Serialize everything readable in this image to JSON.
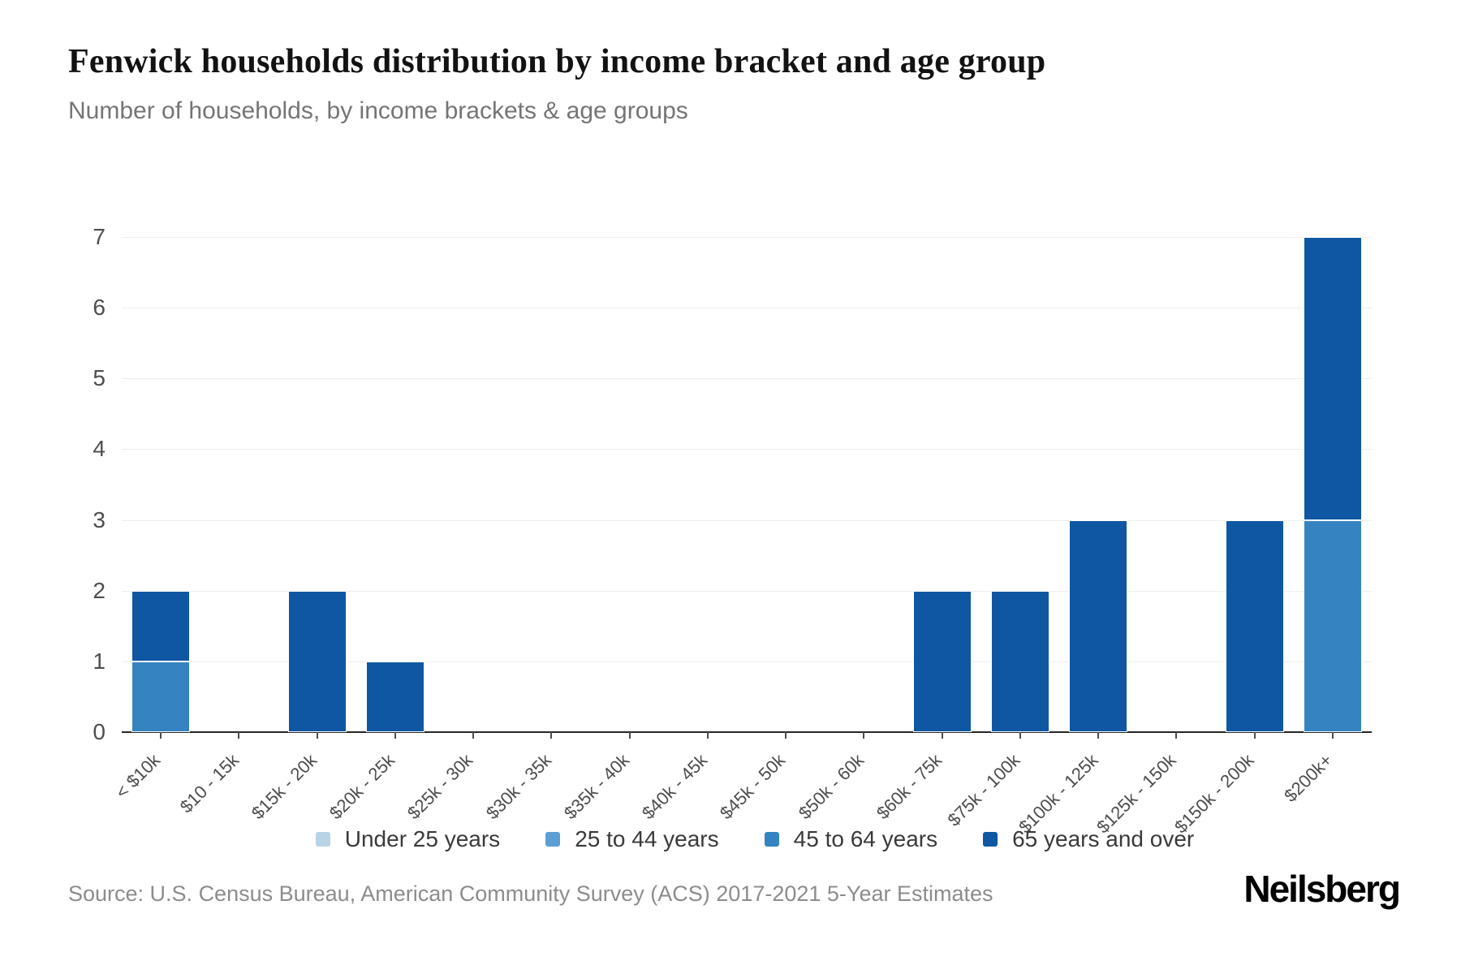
{
  "chart_data": {
    "type": "bar",
    "stacked": true,
    "title": "Fenwick households distribution by income bracket and age group",
    "subtitle": "Number of households, by income brackets & age groups",
    "xlabel": "",
    "ylabel": "",
    "ylim": [
      0,
      7
    ],
    "yticks": [
      0,
      1,
      2,
      3,
      4,
      5,
      6,
      7
    ],
    "grid": true,
    "legend_position": "bottom",
    "categories": [
      "< $10k",
      "$10 - 15k",
      "$15k - 20k",
      "$20k - 25k",
      "$25k - 30k",
      "$30k - 35k",
      "$35k - 40k",
      "$40k - 45k",
      "$45k - 50k",
      "$50k - 60k",
      "$60k - 75k",
      "$75k - 100k",
      "$100k - 125k",
      "$125k - 150k",
      "$150k - 200k",
      "$200k+"
    ],
    "series": [
      {
        "name": "Under 25 years",
        "color": "#b8d3e8",
        "values": [
          0,
          0,
          0,
          0,
          0,
          0,
          0,
          0,
          0,
          0,
          0,
          0,
          0,
          0,
          0,
          0
        ]
      },
      {
        "name": "25 to 44 years",
        "color": "#5b9fd4",
        "values": [
          0,
          0,
          0,
          0,
          0,
          0,
          0,
          0,
          0,
          0,
          0,
          0,
          0,
          0,
          0,
          0
        ]
      },
      {
        "name": "45 to 64 years",
        "color": "#3584c1",
        "values": [
          1,
          0,
          0,
          0,
          0,
          0,
          0,
          0,
          0,
          0,
          0,
          0,
          0,
          0,
          0,
          3
        ]
      },
      {
        "name": "65 years and over",
        "color": "#0f57a3",
        "values": [
          1,
          0,
          2,
          1,
          0,
          0,
          0,
          0,
          0,
          0,
          2,
          2,
          3,
          0,
          3,
          4
        ]
      }
    ]
  },
  "footer": {
    "source": "Source: U.S. Census Bureau, American Community Survey (ACS) 2017-2021 5-Year Estimates",
    "brand": "Neilsberg"
  }
}
